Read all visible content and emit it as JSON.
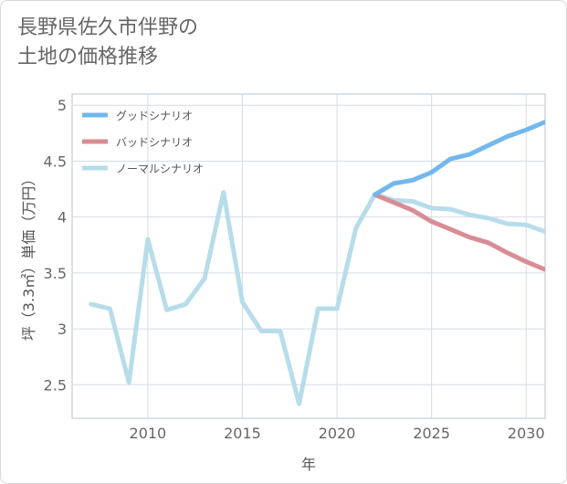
{
  "header": {
    "title_line1": "長野県佐久市伴野の",
    "title_line2": "土地の価格推移"
  },
  "chart_data": {
    "type": "line",
    "title": "長野県佐久市伴野の土地の価格推移",
    "xlabel": "年",
    "ylabel": "坪（3.3㎡）単価（万円）",
    "xlim": [
      2006,
      2031
    ],
    "ylim": [
      2.2,
      5.1
    ],
    "x_ticks": [
      2010,
      2015,
      2020,
      2025,
      2030
    ],
    "y_ticks": [
      2.5,
      3,
      3.5,
      4,
      4.5,
      5
    ],
    "grid": true,
    "legend_position": "top-left",
    "series": [
      {
        "name": "グッドシナリオ",
        "color": "#72b8ef",
        "points": [
          [
            2022,
            4.2
          ],
          [
            2023,
            4.3
          ],
          [
            2024,
            4.33
          ],
          [
            2025,
            4.4
          ],
          [
            2026,
            4.52
          ],
          [
            2027,
            4.56
          ],
          [
            2028,
            4.64
          ],
          [
            2029,
            4.72
          ],
          [
            2030,
            4.78
          ],
          [
            2031,
            4.85
          ]
        ]
      },
      {
        "name": "バッドシナリオ",
        "color": "#d98c93",
        "points": [
          [
            2022,
            4.2
          ],
          [
            2023,
            4.13
          ],
          [
            2024,
            4.06
          ],
          [
            2025,
            3.96
          ],
          [
            2026,
            3.89
          ],
          [
            2027,
            3.82
          ],
          [
            2028,
            3.77
          ],
          [
            2029,
            3.68
          ],
          [
            2030,
            3.6
          ],
          [
            2031,
            3.53
          ]
        ]
      },
      {
        "name": "ノーマルシナリオ",
        "color": "#b7dcea",
        "points": [
          [
            2007,
            3.22
          ],
          [
            2008,
            3.18
          ],
          [
            2009,
            2.52
          ],
          [
            2010,
            3.8
          ],
          [
            2011,
            3.17
          ],
          [
            2012,
            3.22
          ],
          [
            2013,
            3.45
          ],
          [
            2014,
            4.22
          ],
          [
            2015,
            3.24
          ],
          [
            2016,
            2.98
          ],
          [
            2017,
            2.98
          ],
          [
            2018,
            2.33
          ],
          [
            2019,
            3.18
          ],
          [
            2020,
            3.18
          ],
          [
            2021,
            3.9
          ],
          [
            2022,
            4.2
          ],
          [
            2023,
            4.15
          ],
          [
            2024,
            4.14
          ],
          [
            2025,
            4.08
          ],
          [
            2026,
            4.07
          ],
          [
            2027,
            4.02
          ],
          [
            2028,
            3.99
          ],
          [
            2029,
            3.94
          ],
          [
            2030,
            3.93
          ],
          [
            2031,
            3.87
          ]
        ]
      }
    ]
  }
}
